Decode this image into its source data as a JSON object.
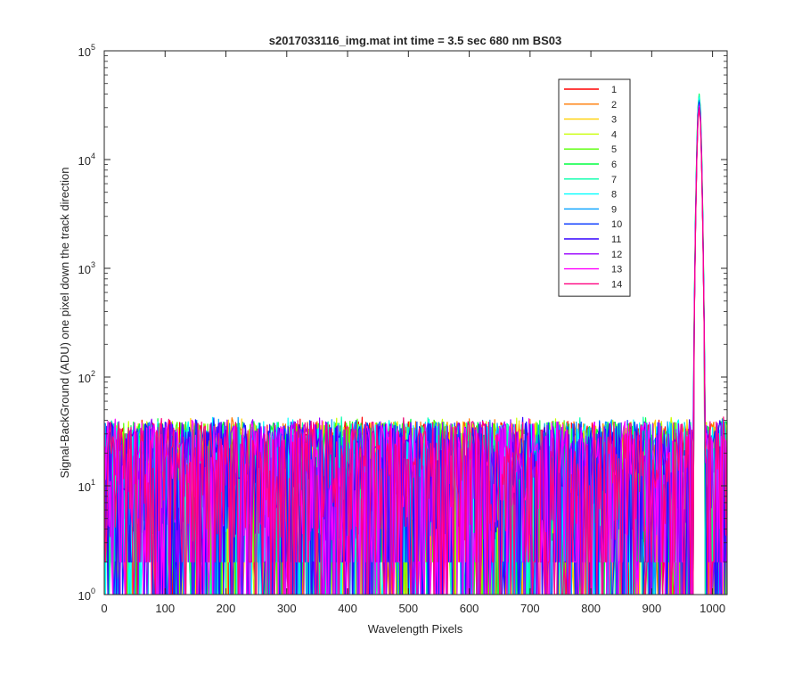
{
  "chart_data": {
    "type": "line",
    "title": "s2017033116_img.mat int time = 3.5 sec  680 nm BS03",
    "xlabel": "Wavelength Pixels",
    "ylabel": "Signal-BackGround (ADU) one pixel down the track direction",
    "xlim": [
      0,
      1024
    ],
    "ylim": [
      1,
      100000
    ],
    "yscale": "log",
    "x_ticks": [
      0,
      100,
      200,
      300,
      400,
      500,
      600,
      700,
      800,
      900,
      1000
    ],
    "y_ticks": [
      {
        "base": "10",
        "exp": "0",
        "value": 1
      },
      {
        "base": "10",
        "exp": "1",
        "value": 10
      },
      {
        "base": "10",
        "exp": "2",
        "value": 100
      },
      {
        "base": "10",
        "exp": "3",
        "value": 1000
      },
      {
        "base": "10",
        "exp": "4",
        "value": 10000
      },
      {
        "base": "10",
        "exp": "5",
        "value": 100000
      }
    ],
    "grid": false,
    "legend_position": "top-right",
    "noise_floor": {
      "x_range": [
        0,
        968
      ],
      "typical_min": 1,
      "typical_max": 40
    },
    "peak": {
      "x": 978,
      "y_min": 30000,
      "y_max": 40000
    },
    "series": [
      {
        "name": "1",
        "color": "#ff0000",
        "peak_value": 31000
      },
      {
        "name": "2",
        "color": "#ff7a00",
        "peak_value": 33000
      },
      {
        "name": "3",
        "color": "#ffd000",
        "peak_value": 34000
      },
      {
        "name": "4",
        "color": "#c8ff00",
        "peak_value": 36000
      },
      {
        "name": "5",
        "color": "#55ff00",
        "peak_value": 38000
      },
      {
        "name": "6",
        "color": "#00ff40",
        "peak_value": 40000
      },
      {
        "name": "7",
        "color": "#00ffaa",
        "peak_value": 39000
      },
      {
        "name": "8",
        "color": "#00ffff",
        "peak_value": 37000
      },
      {
        "name": "9",
        "color": "#00a0ff",
        "peak_value": 35000
      },
      {
        "name": "10",
        "color": "#0033ff",
        "peak_value": 34000
      },
      {
        "name": "11",
        "color": "#3300ff",
        "peak_value": 33000
      },
      {
        "name": "12",
        "color": "#9900ff",
        "peak_value": 32000
      },
      {
        "name": "13",
        "color": "#ff00ff",
        "peak_value": 31000
      },
      {
        "name": "14",
        "color": "#ff0080",
        "peak_value": 30000
      }
    ]
  }
}
